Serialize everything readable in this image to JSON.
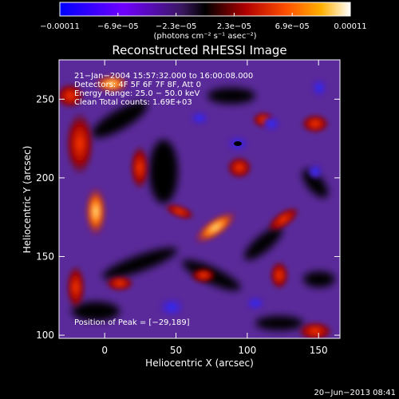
{
  "colorbar": {
    "tick_labels": [
      "−0.00011",
      "−6.9e−05",
      "−2.3e−05",
      "2.3e−05",
      "6.9e−05",
      "0.00011"
    ],
    "unit_label": "(photons cm⁻² s⁻¹ asec⁻²)",
    "min": -0.00011,
    "max": 0.00011
  },
  "image": {
    "title": "Reconstructed RHESSI Image",
    "info_lines": [
      "21−Jan−2004 15:57:32.000 to 16:00:08.000",
      "Detectors: 4F 5F 6F 7F 8F, Att 0",
      "Energy Range: 25.0 − 50.0 keV",
      "Clean    Total counts: 1.69E+03"
    ],
    "peak_label": "Position of Peak = [−29,189]",
    "xlabel": "Heliocentric X (arcsec)",
    "ylabel": "Heliocentric Y (arcsec)",
    "x_range": [
      -32,
      165
    ],
    "y_range": [
      98,
      275
    ],
    "x_ticks": [
      {
        "value": 0,
        "label": "0"
      },
      {
        "value": 50,
        "label": "50"
      },
      {
        "value": 100,
        "label": "100"
      },
      {
        "value": 150,
        "label": "150"
      }
    ],
    "y_ticks": [
      {
        "value": 100,
        "label": "100"
      },
      {
        "value": 150,
        "label": "150"
      },
      {
        "value": 200,
        "label": "200"
      },
      {
        "value": 250,
        "label": "250"
      }
    ],
    "colors": {
      "background": "#000000",
      "map_base": "#5a2a9a"
    }
  },
  "footer": {
    "timestamp": "20−Jun−2013 08:41"
  }
}
